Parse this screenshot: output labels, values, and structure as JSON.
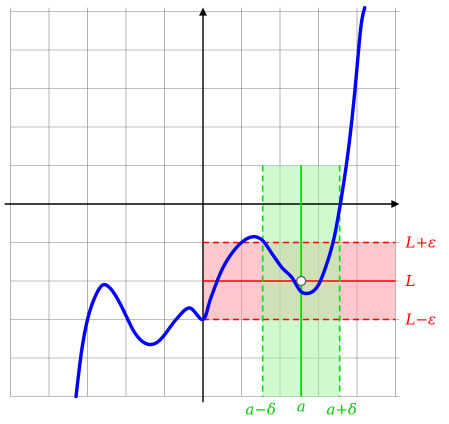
{
  "chart_data": {
    "type": "line",
    "title": "",
    "xlabel": "",
    "ylabel": "",
    "xlim": [
      -5,
      5.1
    ],
    "ylim": [
      -5,
      5.1
    ],
    "grid": true,
    "series": [
      {
        "color": "#0000ff",
        "points": [
          [
            -3.3,
            -5.0
          ],
          [
            -3.15,
            -3.8
          ],
          [
            -3.0,
            -3.0
          ],
          [
            -2.8,
            -2.4
          ],
          [
            -2.6,
            -2.1
          ],
          [
            -2.4,
            -2.2
          ],
          [
            -2.2,
            -2.5
          ],
          [
            -2.0,
            -2.9
          ],
          [
            -1.8,
            -3.3
          ],
          [
            -1.6,
            -3.55
          ],
          [
            -1.4,
            -3.65
          ],
          [
            -1.2,
            -3.6
          ],
          [
            -1.0,
            -3.4
          ],
          [
            -0.7,
            -3.0
          ],
          [
            -0.35,
            -2.7
          ],
          [
            0.0,
            -3.0
          ],
          [
            0.2,
            -2.45
          ],
          [
            0.45,
            -1.8
          ],
          [
            0.7,
            -1.35
          ],
          [
            1.0,
            -1.0
          ],
          [
            1.3,
            -0.85
          ],
          [
            1.55,
            -0.95
          ],
          [
            1.8,
            -1.3
          ],
          [
            2.05,
            -1.65
          ],
          [
            2.3,
            -1.9
          ],
          [
            2.55,
            -2.28
          ],
          [
            2.8,
            -2.3
          ],
          [
            3.0,
            -2.1
          ],
          [
            3.2,
            -1.6
          ],
          [
            3.4,
            -0.9
          ],
          [
            3.6,
            0.2
          ],
          [
            3.8,
            1.6
          ],
          [
            3.95,
            3.0
          ],
          [
            4.1,
            4.6
          ],
          [
            4.2,
            5.1
          ]
        ]
      }
    ],
    "point_a": {
      "x": 2.55,
      "y": -2.0
    },
    "limit": {
      "L": -2.0,
      "epsilon": 1.0
    },
    "delta": 1.0,
    "tick_labels": {
      "a_minus_delta": "a−δ",
      "a": "a",
      "a_plus_delta": "a+δ",
      "L_plus_eps": "L+ε",
      "L": "L",
      "L_minus_eps": "L−ε"
    },
    "colors": {
      "curve": "#0000ff",
      "band_fill": "#ff9aa2",
      "band_lines": "#ff0000",
      "delta_fill": "#a6f5a6",
      "delta_lines": "#00dd00",
      "grid": "#808080",
      "axes": "#000000",
      "labels_L": "#ff0000",
      "labels_a": "#00cc00"
    }
  }
}
